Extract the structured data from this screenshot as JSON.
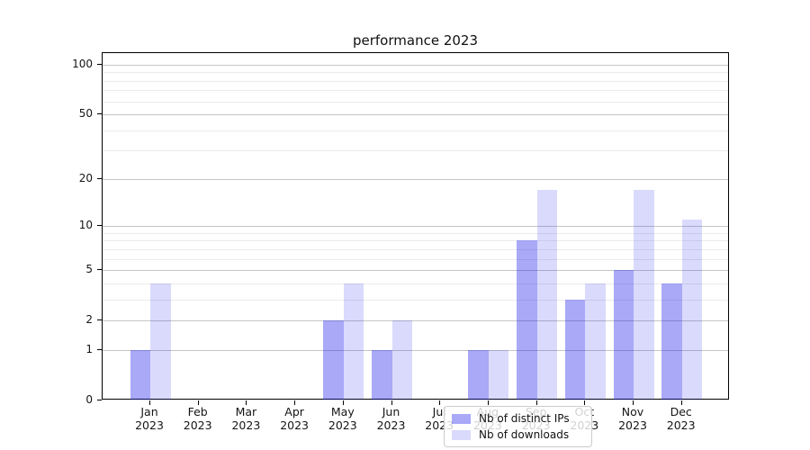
{
  "figure": {
    "title": "performance 2023",
    "background_color": "#ffffff"
  },
  "chart_data": {
    "type": "bar",
    "title": "performance 2023",
    "categories": [
      "Jan",
      "Feb",
      "Mar",
      "Apr",
      "May",
      "Jun",
      "Jul",
      "Aug",
      "Sep",
      "Oct",
      "Nov",
      "Dec"
    ],
    "category_year_label": "2023",
    "series": [
      {
        "name": "Nb of distinct IPs",
        "color": "rgba(10,10,235,0.35)",
        "values": [
          1,
          0,
          0,
          0,
          2,
          1,
          0,
          1,
          8,
          3,
          5,
          4
        ]
      },
      {
        "name": "Nb of downloads",
        "color": "rgba(10,10,235,0.15)",
        "values": [
          4,
          0,
          0,
          0,
          4,
          2,
          0,
          1,
          17,
          4,
          17,
          11
        ]
      }
    ],
    "xlabel": "",
    "ylabel": "",
    "yscale": "log1p",
    "ylim": [
      0,
      117
    ],
    "yticks_major": [
      0,
      1,
      2,
      5,
      10,
      20,
      50,
      100
    ],
    "yticks_minor": [
      3,
      4,
      6,
      7,
      8,
      9,
      30,
      40,
      60,
      70,
      80,
      90
    ],
    "grid": "horizontal, major and minor",
    "legend_position": "lower-center-left inside axes",
    "colors": {
      "major_grid": "#c6c6c6",
      "minor_grid": "#ebebeb",
      "axis": "#000000",
      "text": "#151515"
    }
  }
}
